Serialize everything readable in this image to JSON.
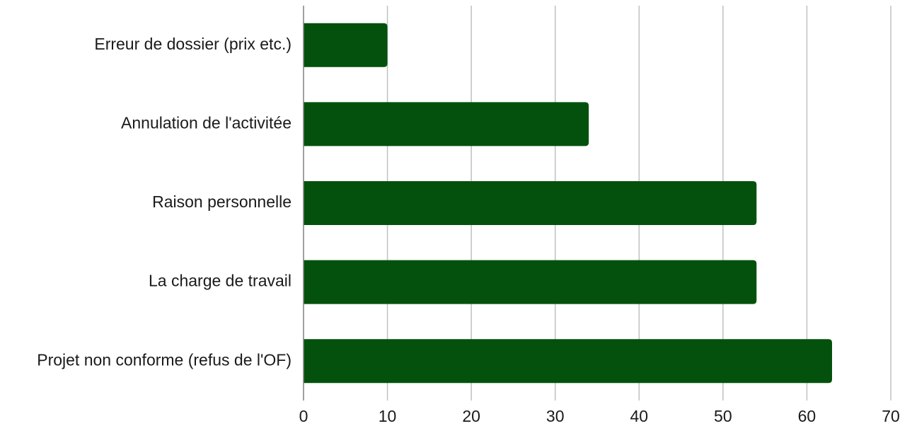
{
  "chart_data": {
    "type": "bar",
    "orientation": "horizontal",
    "categories": [
      "Erreur de dossier (prix etc.)",
      "Annulation de l'activitée",
      "Raison personnelle",
      "La charge de travail",
      "Projet non conforme (refus de l'OF)"
    ],
    "values": [
      10,
      34,
      54,
      54,
      63
    ],
    "xlim": [
      0,
      70
    ],
    "xticks": [
      0,
      10,
      20,
      30,
      40,
      50,
      60,
      70
    ],
    "grid": "vertical",
    "legend": "none",
    "bar_color": "#03510c",
    "grid_color": "#c0c0c0",
    "axis_color": "#808080"
  }
}
